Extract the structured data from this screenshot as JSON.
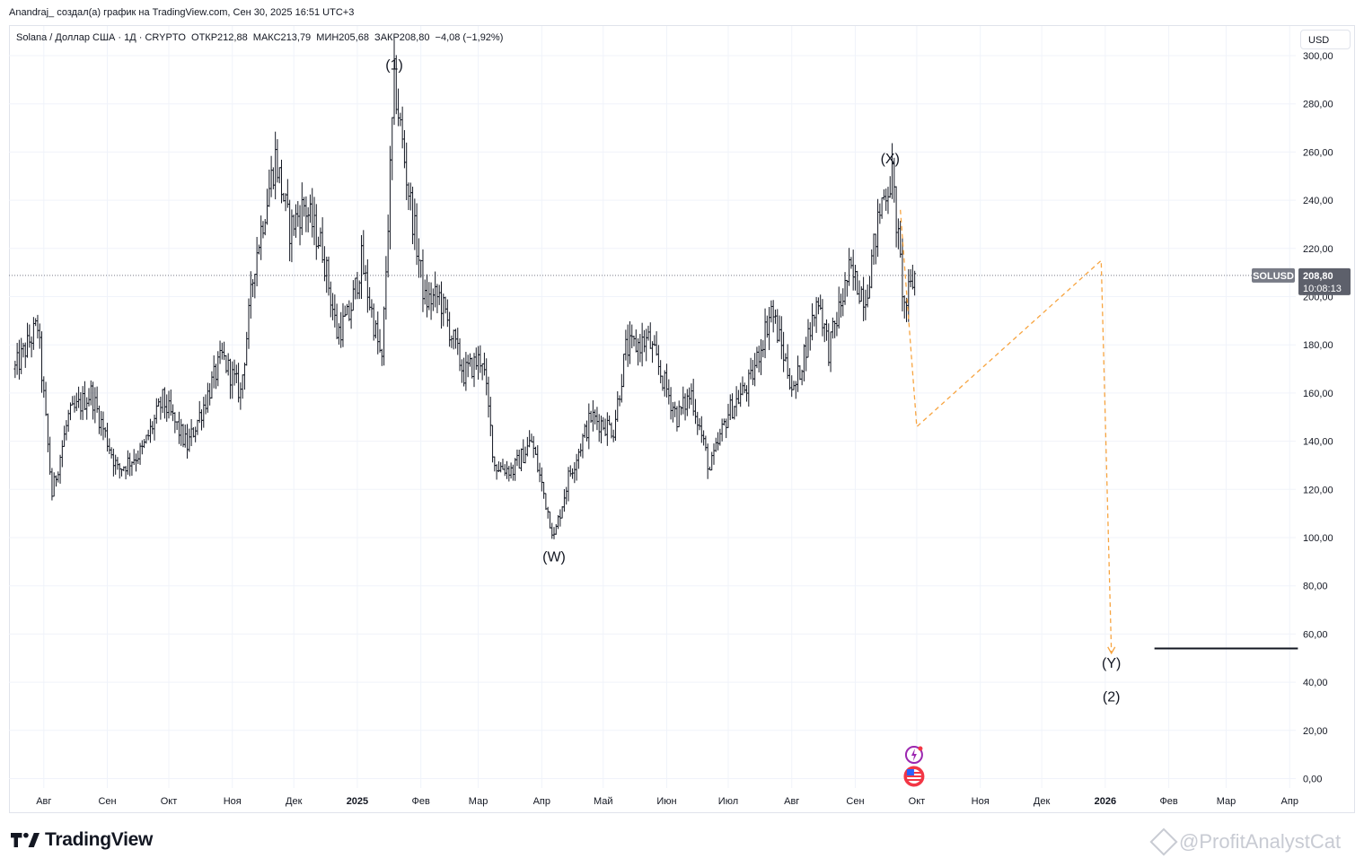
{
  "header": {
    "publish_line": "Anandraj_ создал(а) график на TradingView.com, Сен 30, 2025 16:51 UTC+3"
  },
  "legend": {
    "symbol_line": "Solana / Доллар США · 1Д · CRYPTO  ОТКР212,88  МАКС213,79  МИН205,68  ЗАКР208,80  −4,08 (−1,92%)"
  },
  "currency_button": "USD",
  "price_tag": {
    "symbol": "SOLUSD",
    "price": "208,80",
    "countdown": "10:08:13"
  },
  "footer": {
    "brand": "TradingView",
    "watermark": "@ProfitAnalystCat"
  },
  "colors": {
    "bars": "#131722",
    "projection": "#f7a440",
    "grid": "#f0f3fa",
    "price_label_bg": "#5d606b",
    "symbol_label_bg": "#787b86"
  },
  "icons": [
    "lightning-event-icon",
    "us-flag-economic-event-icon"
  ],
  "chart_data": {
    "type": "ohlc_bar",
    "symbol": "SOLUSD",
    "interval": "1D",
    "ylim": [
      0,
      300
    ],
    "y_ticks": [
      "0,00",
      "20,00",
      "40,00",
      "60,00",
      "80,00",
      "100,00",
      "120,00",
      "140,00",
      "160,00",
      "180,00",
      "200,00",
      "220,00",
      "240,00",
      "260,00",
      "280,00",
      "300,00"
    ],
    "x_ticks": [
      {
        "label": "Авг",
        "date": "2024-08-01"
      },
      {
        "label": "Сен",
        "date": "2024-09-01"
      },
      {
        "label": "Окт",
        "date": "2024-10-01"
      },
      {
        "label": "Ноя",
        "date": "2024-11-01"
      },
      {
        "label": "Дек",
        "date": "2024-12-01"
      },
      {
        "label": "2025",
        "date": "2025-01-01",
        "bold": true
      },
      {
        "label": "Фев",
        "date": "2025-02-01"
      },
      {
        "label": "Мар",
        "date": "2025-03-01"
      },
      {
        "label": "Апр",
        "date": "2025-04-01"
      },
      {
        "label": "Май",
        "date": "2025-05-01"
      },
      {
        "label": "Июн",
        "date": "2025-06-01"
      },
      {
        "label": "Июл",
        "date": "2025-07-01"
      },
      {
        "label": "Авг",
        "date": "2025-08-01"
      },
      {
        "label": "Сен",
        "date": "2025-09-01"
      },
      {
        "label": "Окт",
        "date": "2025-10-01"
      },
      {
        "label": "Ноя",
        "date": "2025-11-01"
      },
      {
        "label": "Дек",
        "date": "2025-12-01"
      },
      {
        "label": "2026",
        "date": "2026-01-01",
        "bold": true
      },
      {
        "label": "Фев",
        "date": "2026-02-01"
      },
      {
        "label": "Мар",
        "date": "2026-03-01"
      },
      {
        "label": "Апр",
        "date": "2026-04-01"
      }
    ],
    "price_path": [
      [
        "2024-07-18",
        170
      ],
      [
        "2024-07-29",
        188
      ],
      [
        "2024-08-05",
        118
      ],
      [
        "2024-08-13",
        150
      ],
      [
        "2024-08-24",
        160
      ],
      [
        "2024-09-06",
        128
      ],
      [
        "2024-09-18",
        136
      ],
      [
        "2024-09-28",
        157
      ],
      [
        "2024-10-10",
        138
      ],
      [
        "2024-10-18",
        155
      ],
      [
        "2024-10-27",
        175
      ],
      [
        "2024-11-05",
        160
      ],
      [
        "2024-11-12",
        215
      ],
      [
        "2024-11-22",
        258
      ],
      [
        "2024-11-29",
        228
      ],
      [
        "2024-12-06",
        238
      ],
      [
        "2024-12-15",
        220
      ],
      [
        "2024-12-22",
        185
      ],
      [
        "2024-12-28",
        192
      ],
      [
        "2025-01-03",
        215
      ],
      [
        "2025-01-13",
        172
      ],
      [
        "2025-01-19",
        290
      ],
      [
        "2025-01-25",
        250
      ],
      [
        "2025-02-03",
        198
      ],
      [
        "2025-02-10",
        200
      ],
      [
        "2025-02-22",
        168
      ],
      [
        "2025-03-03",
        175
      ],
      [
        "2025-03-09",
        130
      ],
      [
        "2025-03-18",
        128
      ],
      [
        "2025-03-27",
        140
      ],
      [
        "2025-04-07",
        100
      ],
      [
        "2025-04-14",
        125
      ],
      [
        "2025-04-25",
        150
      ],
      [
        "2025-05-06",
        145
      ],
      [
        "2025-05-12",
        178
      ],
      [
        "2025-05-23",
        182
      ],
      [
        "2025-06-06",
        150
      ],
      [
        "2025-06-13",
        160
      ],
      [
        "2025-06-22",
        128
      ],
      [
        "2025-07-01",
        152
      ],
      [
        "2025-07-12",
        165
      ],
      [
        "2025-07-22",
        195
      ],
      [
        "2025-08-02",
        160
      ],
      [
        "2025-08-14",
        200
      ],
      [
        "2025-08-19",
        178
      ],
      [
        "2025-08-29",
        210
      ],
      [
        "2025-09-06",
        200
      ],
      [
        "2025-09-14",
        240
      ],
      [
        "2025-09-19",
        250
      ],
      [
        "2025-09-25",
        195
      ],
      [
        "2025-09-30",
        209
      ]
    ],
    "wave_labels": [
      {
        "text": "(1)",
        "date": "2025-01-19",
        "price": 292,
        "position": "above"
      },
      {
        "text": "(W)",
        "date": "2025-04-07",
        "price": 96,
        "position": "below"
      },
      {
        "text": "(X)",
        "date": "2025-09-18",
        "price": 253,
        "position": "above"
      },
      {
        "text": "(Y)",
        "date": "2026-01-04",
        "price": 52,
        "position": "below"
      },
      {
        "text": "(2)",
        "date": "2026-01-04",
        "price": 38,
        "position": "below"
      }
    ],
    "projection_path": [
      {
        "date": "2025-09-23",
        "price": 236
      },
      {
        "date": "2025-10-01",
        "price": 146
      },
      {
        "date": "2025-12-30",
        "price": 215
      },
      {
        "date": "2026-01-04",
        "price": 52
      }
    ],
    "target_line": {
      "price": 54,
      "from": "2026-01-25",
      "to": "2026-04-05"
    },
    "last_price": 208.8
  }
}
